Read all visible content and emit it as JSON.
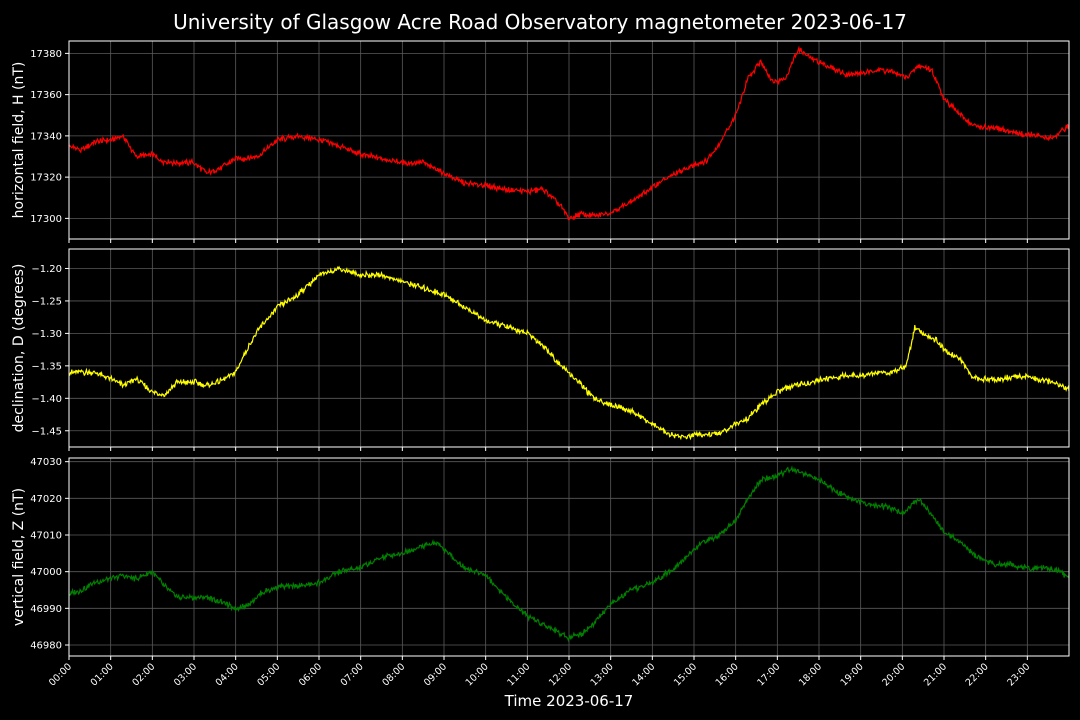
{
  "title": "University of Glasgow Acre Road Observatory magnetometer 2023-06-17",
  "xlabel": "Time 2023-06-17",
  "x_ticks": [
    "00:00",
    "01:00",
    "02:00",
    "03:00",
    "04:00",
    "05:00",
    "06:00",
    "07:00",
    "08:00",
    "09:00",
    "10:00",
    "11:00",
    "12:00",
    "13:00",
    "14:00",
    "15:00",
    "16:00",
    "17:00",
    "18:00",
    "19:00",
    "20:00",
    "21:00",
    "22:00",
    "23:00"
  ],
  "chart_data": [
    {
      "type": "line",
      "ylabel": "horizontal field, H (nT)",
      "color": "#ff0000",
      "x_unit": "hour of day",
      "xlim": [
        0,
        24
      ],
      "ylim": [
        17290,
        17386
      ],
      "y_ticks": [
        "17300",
        "17320",
        "17340",
        "17360",
        "17380"
      ],
      "grid": true,
      "series": [
        {
          "x": [
            0,
            0.3,
            0.6,
            1.0,
            1.3,
            1.6,
            2.0,
            2.2,
            2.5,
            3.0,
            3.3,
            3.6,
            4.0,
            4.3,
            4.6,
            5.0,
            5.5,
            6.0,
            6.5,
            7.0,
            7.5,
            8.0,
            8.5,
            9.0,
            9.5,
            10.0,
            10.5,
            11.0,
            11.4,
            11.8,
            12.0,
            12.3,
            12.6,
            13.0,
            13.4,
            13.8,
            14.2,
            14.6,
            15.0,
            15.3,
            15.6,
            16.0,
            16.3,
            16.6,
            16.9,
            17.2,
            17.5,
            17.8,
            18.2,
            18.6,
            19.0,
            19.4,
            19.8,
            20.1,
            20.4,
            20.7,
            21.0,
            21.4,
            21.7,
            22.0,
            22.4,
            22.8,
            23.2,
            23.6,
            24.0
          ],
          "values": [
            17335,
            17333,
            17337,
            17338,
            17340,
            17330,
            17331,
            17328,
            17327,
            17327,
            17322,
            17324,
            17329,
            17329,
            17331,
            17338,
            17340,
            17338,
            17335,
            17331,
            17329,
            17327,
            17327,
            17322,
            17317,
            17316,
            17314,
            17313,
            17314,
            17306,
            17300,
            17302,
            17301,
            17303,
            17307,
            17312,
            17318,
            17322,
            17326,
            17328,
            17336,
            17350,
            17368,
            17376,
            17366,
            17368,
            17382,
            17378,
            17374,
            17370,
            17370,
            17372,
            17371,
            17368,
            17374,
            17372,
            17358,
            17350,
            17345,
            17344,
            17343,
            17341,
            17340,
            17339,
            17345
          ]
        }
      ]
    },
    {
      "type": "line",
      "ylabel": "declination, D (degrees)",
      "color": "#ffff00",
      "x_unit": "hour of day",
      "xlim": [
        0,
        24
      ],
      "ylim": [
        -1.475,
        -1.17
      ],
      "y_ticks": [
        "−1.20",
        "−1.25",
        "−1.30",
        "−1.35",
        "−1.40",
        "−1.45"
      ],
      "grid": true,
      "series": [
        {
          "x": [
            0,
            0.3,
            0.6,
            1.0,
            1.3,
            1.6,
            2.0,
            2.3,
            2.6,
            3.0,
            3.3,
            3.6,
            4.0,
            4.3,
            4.6,
            5.0,
            5.5,
            6.0,
            6.5,
            7.0,
            7.5,
            8.0,
            8.5,
            9.0,
            9.5,
            10.0,
            10.5,
            11.0,
            11.4,
            11.8,
            12.0,
            12.3,
            12.6,
            13.0,
            13.5,
            14.0,
            14.4,
            14.8,
            15.2,
            15.6,
            16.0,
            16.3,
            16.6,
            17.0,
            17.4,
            17.8,
            18.2,
            18.6,
            19.0,
            19.4,
            19.8,
            20.1,
            20.3,
            20.5,
            20.8,
            21.1,
            21.4,
            21.7,
            22.0,
            22.4,
            22.8,
            23.2,
            23.6,
            24.0
          ],
          "values": [
            -1.36,
            -1.36,
            -1.36,
            -1.37,
            -1.38,
            -1.37,
            -1.39,
            -1.395,
            -1.375,
            -1.375,
            -1.38,
            -1.375,
            -1.36,
            -1.32,
            -1.29,
            -1.26,
            -1.24,
            -1.21,
            -1.2,
            -1.21,
            -1.21,
            -1.22,
            -1.23,
            -1.24,
            -1.26,
            -1.28,
            -1.29,
            -1.3,
            -1.32,
            -1.35,
            -1.36,
            -1.38,
            -1.4,
            -1.41,
            -1.42,
            -1.44,
            -1.455,
            -1.46,
            -1.455,
            -1.455,
            -1.44,
            -1.43,
            -1.41,
            -1.39,
            -1.38,
            -1.375,
            -1.37,
            -1.365,
            -1.365,
            -1.36,
            -1.36,
            -1.35,
            -1.29,
            -1.3,
            -1.31,
            -1.33,
            -1.34,
            -1.37,
            -1.37,
            -1.37,
            -1.365,
            -1.37,
            -1.375,
            -1.385
          ]
        }
      ]
    },
    {
      "type": "line",
      "ylabel": "vertical field, Z (nT)",
      "color": "#008000",
      "x_unit": "hour of day",
      "xlim": [
        0,
        24
      ],
      "ylim": [
        46977,
        47031
      ],
      "y_ticks": [
        "46980",
        "46990",
        "47000",
        "47010",
        "47020",
        "47030"
      ],
      "grid": true,
      "series": [
        {
          "x": [
            0,
            0.3,
            0.6,
            1.0,
            1.3,
            1.6,
            2.0,
            2.3,
            2.6,
            3.0,
            3.3,
            3.6,
            4.0,
            4.3,
            4.6,
            5.0,
            5.5,
            6.0,
            6.5,
            7.0,
            7.5,
            8.0,
            8.5,
            8.8,
            9.0,
            9.5,
            10.0,
            10.5,
            11.0,
            11.5,
            12.0,
            12.3,
            12.6,
            13.0,
            13.5,
            14.0,
            14.4,
            14.8,
            15.2,
            15.6,
            16.0,
            16.3,
            16.6,
            17.0,
            17.3,
            17.6,
            18.0,
            18.4,
            18.8,
            19.2,
            19.6,
            20.0,
            20.2,
            20.4,
            20.6,
            21.0,
            21.4,
            21.8,
            22.2,
            22.6,
            23.0,
            23.4,
            23.8,
            24.0
          ],
          "values": [
            46994,
            46995,
            46997,
            46998,
            46999,
            46998,
            47000,
            46996,
            46993,
            46993,
            46993,
            46992,
            46990,
            46991,
            46994,
            46996,
            46996,
            46997,
            47000,
            47001,
            47004,
            47005,
            47007,
            47008,
            47006,
            47001,
            46999,
            46993,
            46988,
            46985,
            46982,
            46983,
            46986,
            46991,
            46995,
            46997,
            47000,
            47004,
            47008,
            47010,
            47014,
            47020,
            47025,
            47026,
            47028,
            47027,
            47025,
            47022,
            47020,
            47018,
            47018,
            47016,
            47018,
            47020,
            47017,
            47011,
            47008,
            47004,
            47002,
            47002,
            47001,
            47001,
            47000,
            46998
          ]
        }
      ]
    }
  ]
}
